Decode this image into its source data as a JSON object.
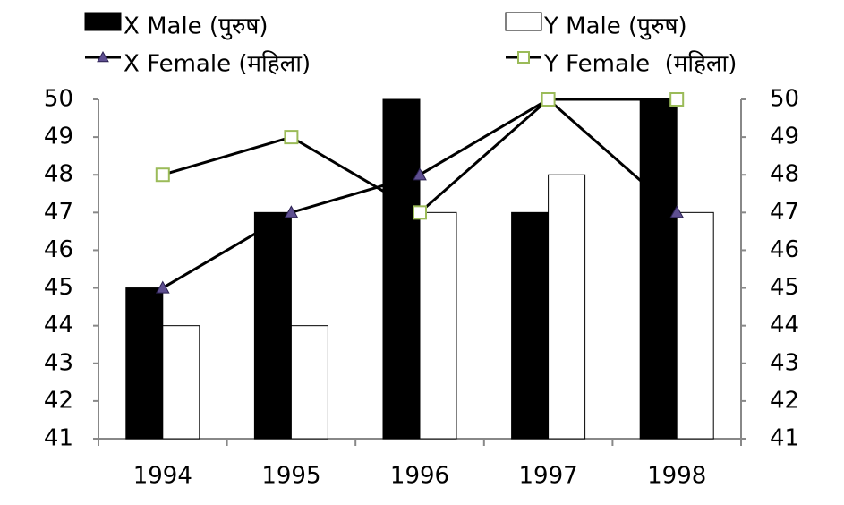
{
  "chart_data": {
    "type": "bar-line",
    "categories": [
      "1994",
      "1995",
      "1996",
      "1997",
      "1998"
    ],
    "series": [
      {
        "name": "X Male (पुरुष)",
        "type": "bar",
        "color": "#000000",
        "values": [
          45,
          47,
          50,
          47,
          50
        ]
      },
      {
        "name": "Y Male (पुरुष)",
        "type": "bar",
        "color": "#ffffff",
        "values": [
          44,
          44,
          47,
          48,
          47
        ]
      },
      {
        "name": "X Female (महिला)",
        "type": "line",
        "axis": "y2",
        "color": "#000000",
        "marker": "triangle",
        "marker_color": "#5e4f91",
        "values": [
          45,
          47,
          48,
          50,
          47
        ]
      },
      {
        "name": "Y Female  (महिला)",
        "type": "line",
        "axis": "y2",
        "color": "#000000",
        "marker": "square",
        "marker_color": "#9bbb59",
        "values": [
          48,
          49,
          47,
          50,
          50
        ]
      }
    ],
    "ylim": [
      41,
      50
    ],
    "yticks": [
      41,
      42,
      43,
      44,
      45,
      46,
      47,
      48,
      49,
      50
    ],
    "y2lim": [
      41,
      50
    ],
    "y2ticks": [
      41,
      42,
      43,
      44,
      45,
      46,
      47,
      48,
      49,
      50
    ],
    "grid": false,
    "legend": "top"
  }
}
